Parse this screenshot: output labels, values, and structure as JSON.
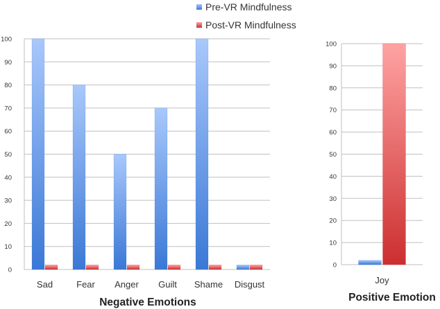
{
  "legend": {
    "pre_label": "Pre-VR Mindfulness",
    "post_label": "Post-VR Mindfulness"
  },
  "colors": {
    "pre_light": "#a9c8fb",
    "pre_dark": "#3a78d6",
    "post_light": "#ffa3a3",
    "post_dark": "#cc2f2f",
    "grid": "#bfbfbf",
    "axis_text": "#333333"
  },
  "chart_data": [
    {
      "type": "bar",
      "title": "",
      "xlabel": "Negative Emotions",
      "ylabel": "",
      "categories": [
        "Sad",
        "Fear",
        "Anger",
        "Guilt",
        "Shame",
        "Disgust"
      ],
      "series": [
        {
          "name": "Pre-VR Mindfulness",
          "values": [
            100,
            80,
            50,
            70,
            100,
            2
          ]
        },
        {
          "name": "Post-VR Mindfulness",
          "values": [
            2,
            2,
            2,
            2,
            2,
            2
          ]
        }
      ],
      "ylim": [
        0,
        100
      ],
      "yticks": [
        0,
        10,
        20,
        30,
        40,
        50,
        60,
        70,
        80,
        90,
        100
      ],
      "grid": true,
      "legend_position": "top-center"
    },
    {
      "type": "bar",
      "title": "",
      "xlabel": "Positive Emotion",
      "ylabel": "",
      "categories": [
        "Joy"
      ],
      "series": [
        {
          "name": "Pre-VR Mindfulness",
          "values": [
            2
          ]
        },
        {
          "name": "Post-VR Mindfulness",
          "values": [
            100
          ]
        }
      ],
      "ylim": [
        0,
        100
      ],
      "yticks": [
        0,
        10,
        20,
        30,
        40,
        50,
        60,
        70,
        80,
        90,
        100
      ],
      "grid": true
    }
  ]
}
